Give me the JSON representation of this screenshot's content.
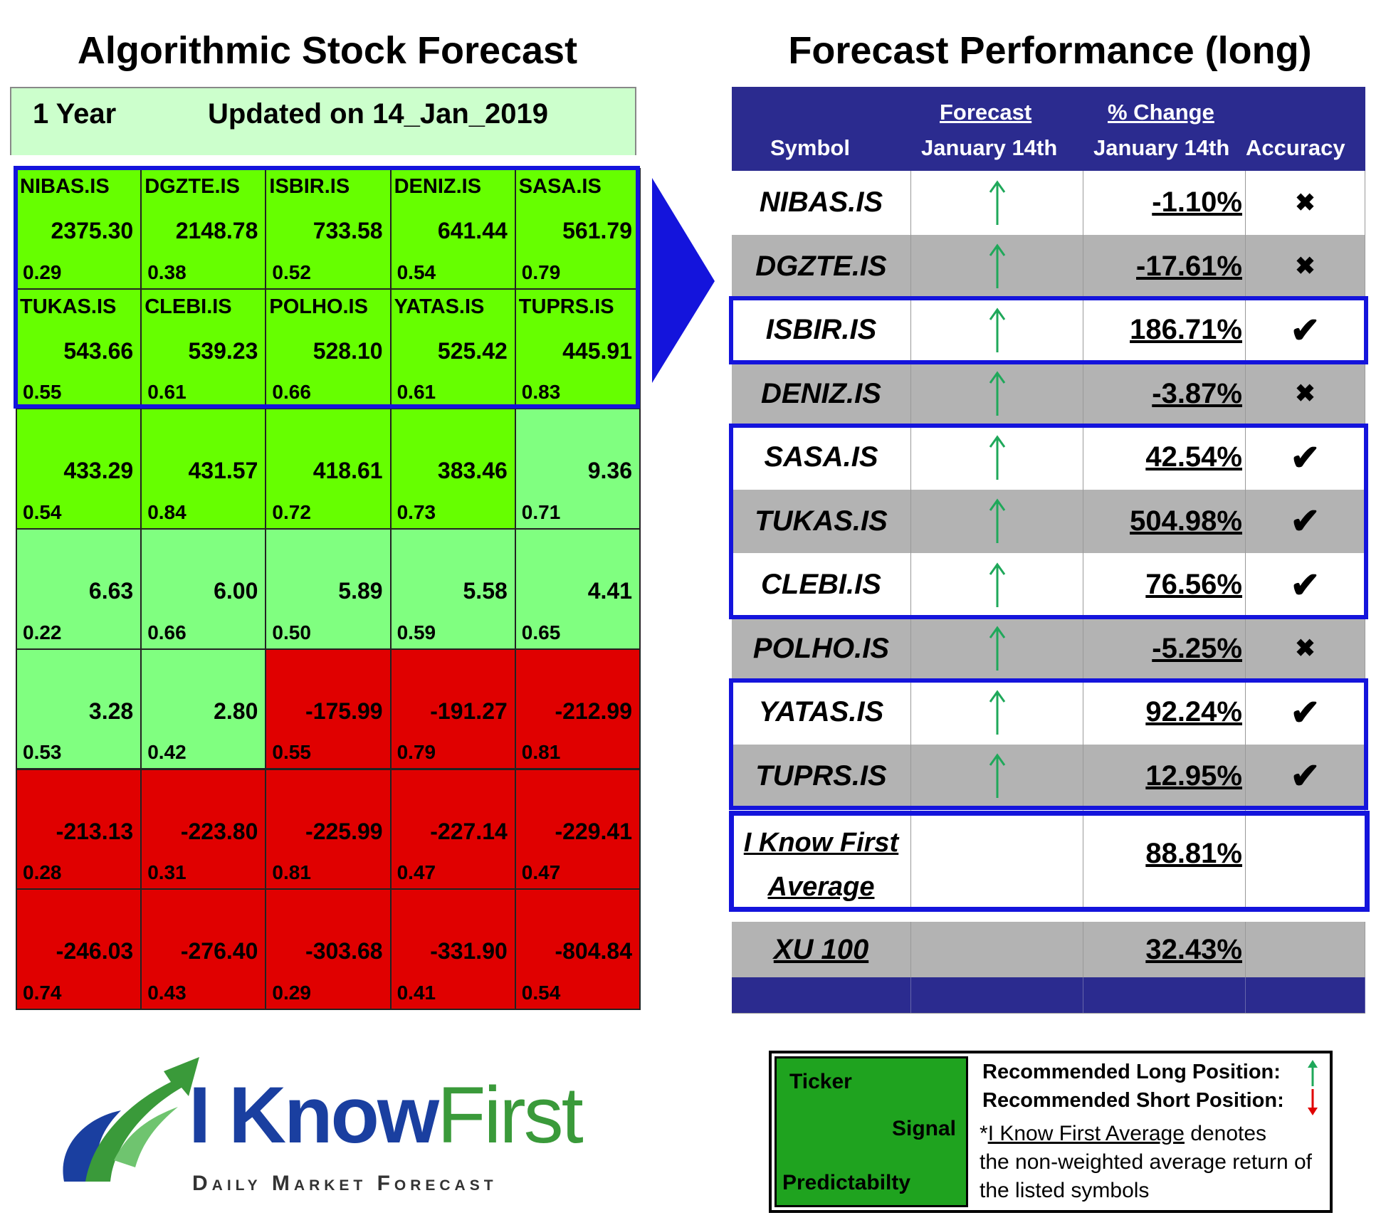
{
  "left_title": "Algorithmic Stock Forecast",
  "right_title": "Forecast Performance (long)",
  "left_header": {
    "period": "1 Year",
    "updated": "Updated on 14_Jan_2019"
  },
  "grid": [
    {
      "symbol": "NIBAS.IS",
      "value": "2375.30",
      "pred": "0.29",
      "color": "bright"
    },
    {
      "symbol": "DGZTE.IS",
      "value": "2148.78",
      "pred": "0.38",
      "color": "bright"
    },
    {
      "symbol": "ISBIR.IS",
      "value": "733.58",
      "pred": "0.52",
      "color": "bright"
    },
    {
      "symbol": "DENIZ.IS",
      "value": "641.44",
      "pred": "0.54",
      "color": "bright"
    },
    {
      "symbol": "SASA.IS",
      "value": "561.79",
      "pred": "0.79",
      "color": "bright"
    },
    {
      "symbol": "TUKAS.IS",
      "value": "543.66",
      "pred": "0.55",
      "color": "bright"
    },
    {
      "symbol": "CLEBI.IS",
      "value": "539.23",
      "pred": "0.61",
      "color": "bright"
    },
    {
      "symbol": "POLHO.IS",
      "value": "528.10",
      "pred": "0.66",
      "color": "bright"
    },
    {
      "symbol": "YATAS.IS",
      "value": "525.42",
      "pred": "0.61",
      "color": "bright"
    },
    {
      "symbol": "TUPRS.IS",
      "value": "445.91",
      "pred": "0.83",
      "color": "bright"
    },
    {
      "symbol": "",
      "value": "433.29",
      "pred": "0.54",
      "color": "bright"
    },
    {
      "symbol": "",
      "value": "431.57",
      "pred": "0.84",
      "color": "bright"
    },
    {
      "symbol": "",
      "value": "418.61",
      "pred": "0.72",
      "color": "bright"
    },
    {
      "symbol": "",
      "value": "383.46",
      "pred": "0.73",
      "color": "bright"
    },
    {
      "symbol": "",
      "value": "9.36",
      "pred": "0.71",
      "color": "light"
    },
    {
      "symbol": "",
      "value": "6.63",
      "pred": "0.22",
      "color": "light"
    },
    {
      "symbol": "",
      "value": "6.00",
      "pred": "0.66",
      "color": "light"
    },
    {
      "symbol": "",
      "value": "5.89",
      "pred": "0.50",
      "color": "light"
    },
    {
      "symbol": "",
      "value": "5.58",
      "pred": "0.59",
      "color": "light"
    },
    {
      "symbol": "",
      "value": "4.41",
      "pred": "0.65",
      "color": "light"
    },
    {
      "symbol": "",
      "value": "3.28",
      "pred": "0.53",
      "color": "light"
    },
    {
      "symbol": "",
      "value": "2.80",
      "pred": "0.42",
      "color": "light"
    },
    {
      "symbol": "",
      "value": "-175.99",
      "pred": "0.55",
      "color": "red"
    },
    {
      "symbol": "",
      "value": "-191.27",
      "pred": "0.79",
      "color": "red"
    },
    {
      "symbol": "",
      "value": "-212.99",
      "pred": "0.81",
      "color": "red"
    },
    {
      "symbol": "",
      "value": "-213.13",
      "pred": "0.28",
      "color": "red"
    },
    {
      "symbol": "",
      "value": "-223.80",
      "pred": "0.31",
      "color": "red"
    },
    {
      "symbol": "",
      "value": "-225.99",
      "pred": "0.81",
      "color": "red"
    },
    {
      "symbol": "",
      "value": "-227.14",
      "pred": "0.47",
      "color": "red"
    },
    {
      "symbol": "",
      "value": "-229.41",
      "pred": "0.47",
      "color": "red"
    },
    {
      "symbol": "",
      "value": "-246.03",
      "pred": "0.74",
      "color": "red"
    },
    {
      "symbol": "",
      "value": "-276.40",
      "pred": "0.43",
      "color": "red"
    },
    {
      "symbol": "",
      "value": "-303.68",
      "pred": "0.29",
      "color": "red"
    },
    {
      "symbol": "",
      "value": "-331.90",
      "pred": "0.41",
      "color": "red"
    },
    {
      "symbol": "",
      "value": "-804.84",
      "pred": "0.54",
      "color": "red"
    }
  ],
  "colors": {
    "bright": "#66ff00",
    "light": "#80ff80",
    "red": "#e00000",
    "navy": "#2b2b8f",
    "highlight": "#1414dc",
    "arrow_green": "#1fa85a"
  },
  "table_header": {
    "symbol": "Symbol",
    "forecast_top": "Forecast",
    "forecast_bottom": "January 14th",
    "change_top": "% Change",
    "change_bottom": "January 14th",
    "accuracy": "Accuracy"
  },
  "rows": [
    {
      "symbol": "NIBAS.IS",
      "signal": "up",
      "change": "-1.10%",
      "accuracy": "cross",
      "bg": "white"
    },
    {
      "symbol": "DGZTE.IS",
      "signal": "up",
      "change": "-17.61%",
      "accuracy": "cross",
      "bg": "gray"
    },
    {
      "symbol": "ISBIR.IS",
      "signal": "up",
      "change": "186.71%",
      "accuracy": "check",
      "bg": "white"
    },
    {
      "symbol": "DENIZ.IS",
      "signal": "up",
      "change": "-3.87%",
      "accuracy": "cross",
      "bg": "gray"
    },
    {
      "symbol": "SASA.IS",
      "signal": "up",
      "change": "42.54%",
      "accuracy": "check",
      "bg": "white"
    },
    {
      "symbol": "TUKAS.IS",
      "signal": "up",
      "change": "504.98%",
      "accuracy": "check",
      "bg": "gray"
    },
    {
      "symbol": "CLEBI.IS",
      "signal": "up",
      "change": "76.56%",
      "accuracy": "check",
      "bg": "white"
    },
    {
      "symbol": "POLHO.IS",
      "signal": "up",
      "change": "-5.25%",
      "accuracy": "cross",
      "bg": "gray"
    },
    {
      "symbol": "YATAS.IS",
      "signal": "up",
      "change": "92.24%",
      "accuracy": "check",
      "bg": "white"
    },
    {
      "symbol": "TUPRS.IS",
      "signal": "up",
      "change": "12.95%",
      "accuracy": "check",
      "bg": "gray"
    }
  ],
  "average": {
    "label_line1": "I Know First",
    "label_line2": "Average",
    "change": "88.81%"
  },
  "index_row": {
    "symbol": "XU 100",
    "change": "32.43%"
  },
  "logo": {
    "brand_a": "I Know",
    "brand_b": "First",
    "tagline": "Daily Market Forecast"
  },
  "legend": {
    "ticker": "Ticker",
    "signal": "Signal",
    "predictability": "Predictabilty",
    "long": "Recommended Long Position:",
    "short": "Recommended Short Position:",
    "note_prefix": "*",
    "note_link": "I Know First Average",
    "note_rest1": " denotes",
    "note_line2": "the non-weighted average return of",
    "note_line3": "the listed symbols"
  }
}
